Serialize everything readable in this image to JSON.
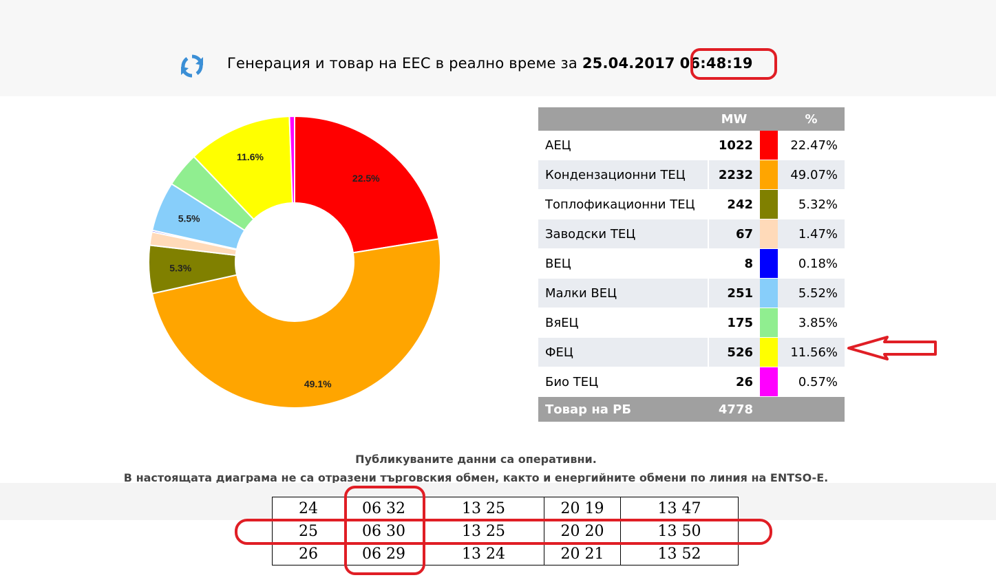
{
  "header": {
    "title_prefix": "Генерация и товар на ЕЕС в реално време за",
    "date": "25.04.2017",
    "time": "06:48:19",
    "refresh_icon": "refresh-icon"
  },
  "table": {
    "col_mw": "MW",
    "col_pct": "%",
    "rows": [
      {
        "name": "АЕЦ",
        "mw": "1022",
        "pct": "22.47%",
        "color": "#ff0000"
      },
      {
        "name": "Кондензационни ТЕЦ",
        "mw": "2232",
        "pct": "49.07%",
        "color": "#ffa500"
      },
      {
        "name": "Топлофикационни ТЕЦ",
        "mw": "242",
        "pct": "5.32%",
        "color": "#808000"
      },
      {
        "name": "Заводски ТЕЦ",
        "mw": "67",
        "pct": "1.47%",
        "color": "#ffdab9"
      },
      {
        "name": "ВЕЦ",
        "mw": "8",
        "pct": "0.18%",
        "color": "#0000ff"
      },
      {
        "name": "Малки ВЕЦ",
        "mw": "251",
        "pct": "5.52%",
        "color": "#87cefa"
      },
      {
        "name": "ВяЕЦ",
        "mw": "175",
        "pct": "3.85%",
        "color": "#90ee90"
      },
      {
        "name": "ФЕЦ",
        "mw": "526",
        "pct": "11.56%",
        "color": "#ffff00"
      },
      {
        "name": "Био ТЕЦ",
        "mw": "26",
        "pct": "0.57%",
        "color": "#ff00ff"
      }
    ],
    "total_label": "Товар на РБ",
    "total_value": "4778"
  },
  "chart_data": {
    "type": "pie",
    "donut": true,
    "categories": [
      "АЕЦ",
      "Кондензационни ТЕЦ",
      "Топлофикационни ТЕЦ",
      "Заводски ТЕЦ",
      "ВЕЦ",
      "Малки ВЕЦ",
      "ВяЕЦ",
      "ФЕЦ",
      "Био ТЕЦ"
    ],
    "values": [
      22.47,
      49.07,
      5.32,
      1.47,
      0.18,
      5.52,
      3.85,
      11.56,
      0.57
    ],
    "colors": [
      "#ff0000",
      "#ffa500",
      "#808000",
      "#ffdab9",
      "#0000ff",
      "#87cefa",
      "#90ee90",
      "#ffff00",
      "#ff00ff"
    ],
    "data_labels": [
      "22.5%",
      "49.1%",
      "5.3%",
      "",
      "",
      "5.5%",
      "",
      "11.6%",
      ""
    ]
  },
  "notes": {
    "line1": "Публикуваните данни са оперативни.",
    "line2": "В настоящата диаграма не са отразени търговския обмен, както и енергийните обмени по линия на ENTSO-E."
  },
  "sun_table": {
    "rows": [
      [
        "24",
        "06 32",
        "13 25",
        "20 19",
        "13 47"
      ],
      [
        "25",
        "06 30",
        "13 25",
        "20 20",
        "13 50"
      ],
      [
        "26",
        "06 29",
        "13 24",
        "20 21",
        "13 52"
      ]
    ]
  },
  "annotations": {
    "color": "#e01e25"
  }
}
